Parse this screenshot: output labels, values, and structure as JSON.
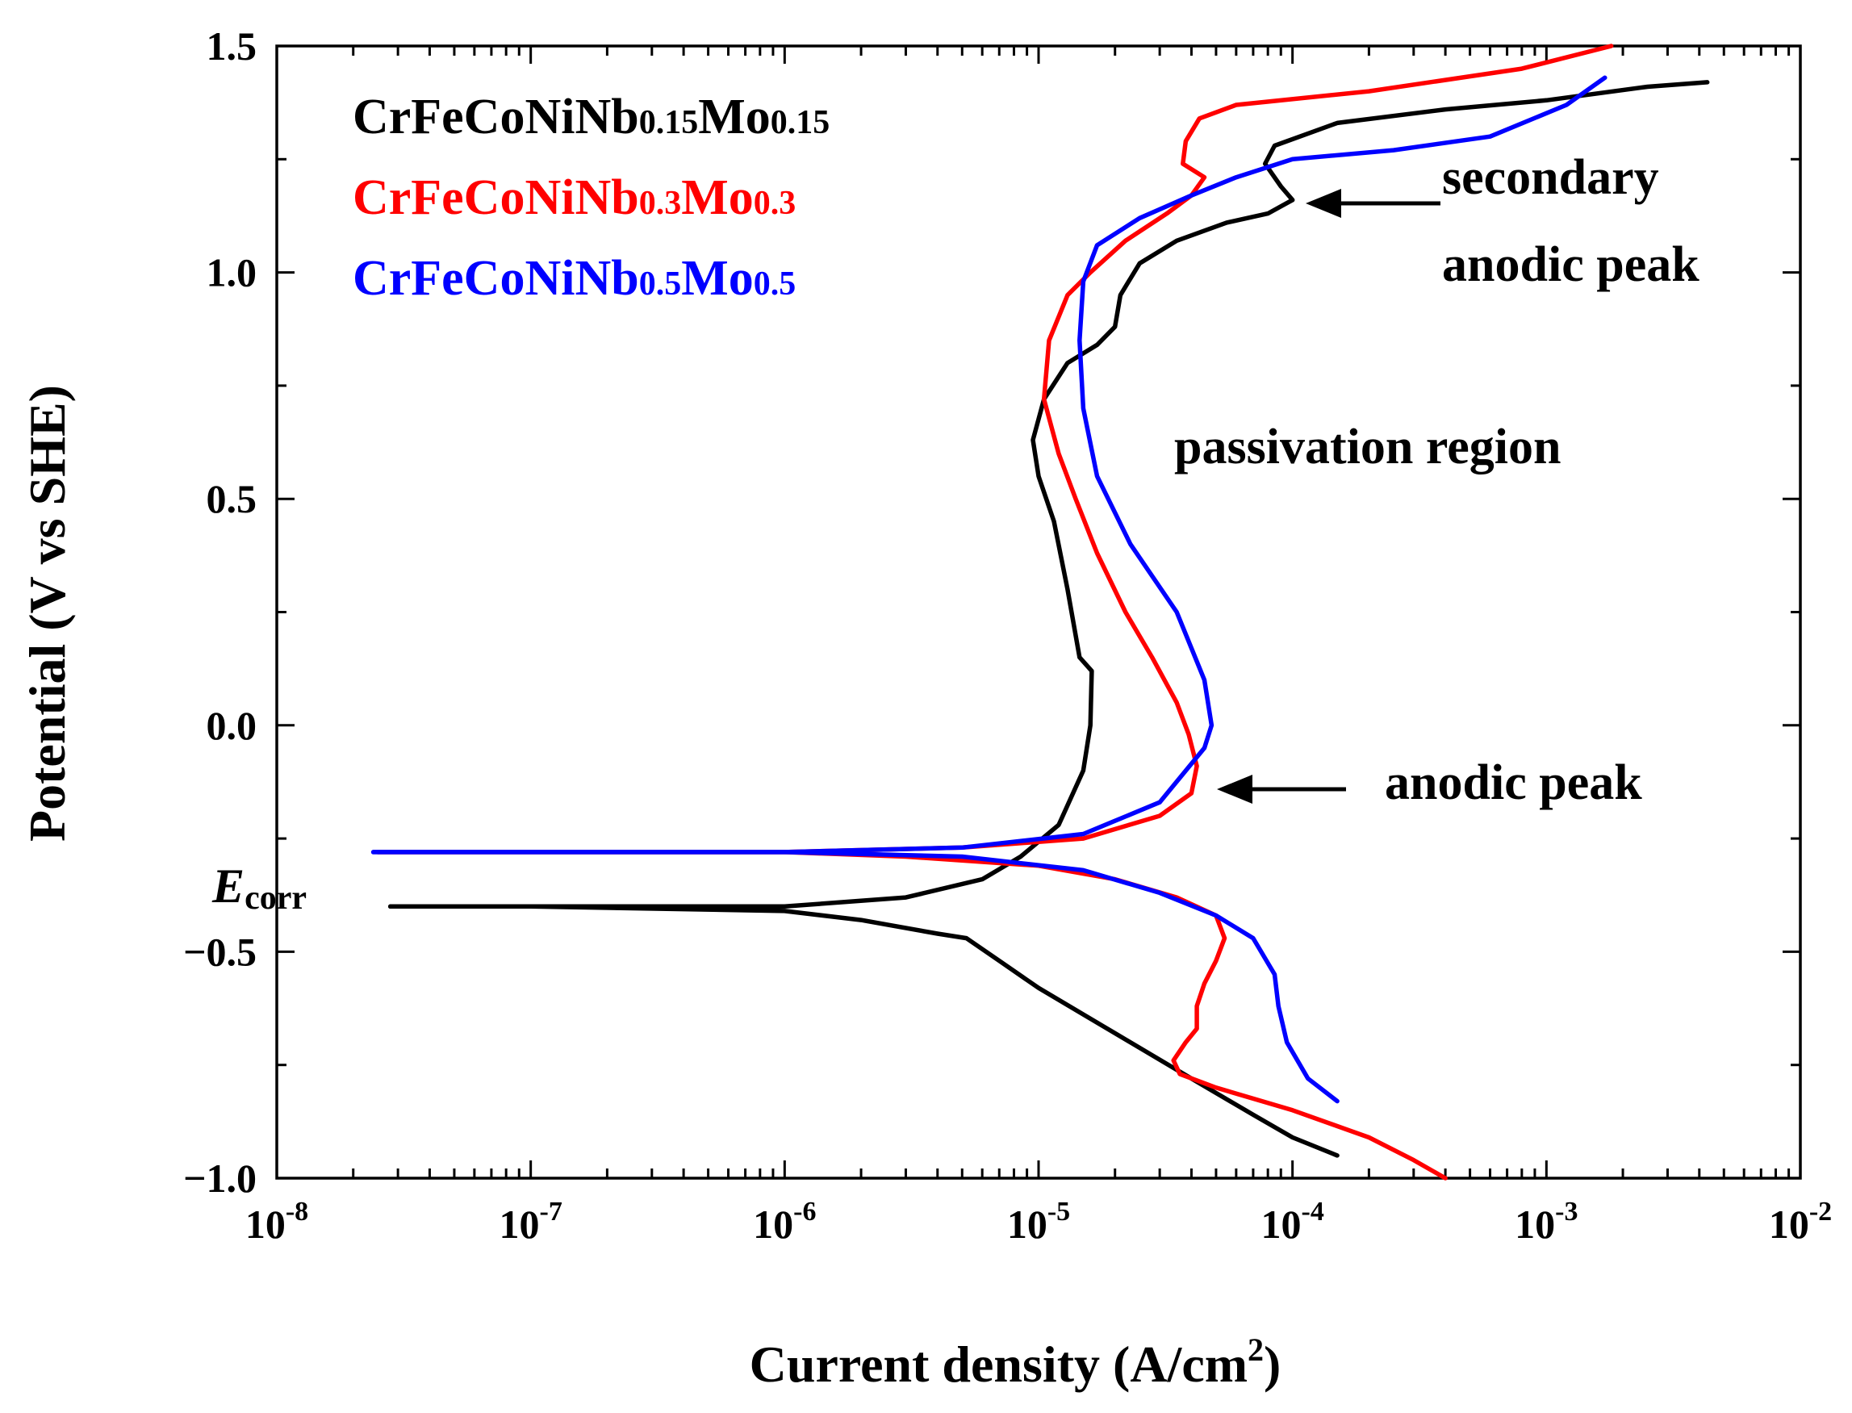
{
  "chart_data": {
    "type": "line",
    "title": "",
    "xlabel": "Current density (A/cm",
    "xlabel_sup": "2",
    "xlabel_close": ")",
    "ylabel": "Potential (V vs SHE)",
    "xscale": "log",
    "xlim": [
      1e-08,
      0.01
    ],
    "ylim": [
      -1.0,
      1.5
    ],
    "grid": false,
    "legend_position": "top-left",
    "x_ticks": [
      {
        "value": 1e-08,
        "base": "10",
        "exp": "-8"
      },
      {
        "value": 1e-07,
        "base": "10",
        "exp": "-7"
      },
      {
        "value": 1e-06,
        "base": "10",
        "exp": "-6"
      },
      {
        "value": 1e-05,
        "base": "10",
        "exp": "-5"
      },
      {
        "value": 0.0001,
        "base": "10",
        "exp": "-4"
      },
      {
        "value": 0.001,
        "base": "10",
        "exp": "-3"
      },
      {
        "value": 0.01,
        "base": "10",
        "exp": "-2"
      }
    ],
    "y_ticks": [
      {
        "value": -1.0,
        "label": "−1.0"
      },
      {
        "value": -0.5,
        "label": "−0.5"
      },
      {
        "value": 0.0,
        "label": "0.0"
      },
      {
        "value": 0.5,
        "label": "0.5"
      },
      {
        "value": 1.0,
        "label": "1.0"
      },
      {
        "value": 1.5,
        "label": "1.5"
      }
    ],
    "series": [
      {
        "name": "CrFeCoNiNb0.15Mo0.15",
        "legend_parts": [
          {
            "text": "CrFeCoNiNb",
            "sub": false
          },
          {
            "text": "0.15",
            "sub": true
          },
          {
            "text": "Mo",
            "sub": false
          },
          {
            "text": "0.15",
            "sub": true
          }
        ],
        "color": "#000000",
        "cathodic": [
          [
            2.8e-08,
            -0.4
          ],
          [
            1e-07,
            -0.4
          ],
          [
            1e-06,
            -0.41
          ],
          [
            2e-06,
            -0.43
          ],
          [
            4e-06,
            -0.46
          ],
          [
            5.2e-06,
            -0.47
          ],
          [
            7e-06,
            -0.52
          ],
          [
            1e-05,
            -0.58
          ],
          [
            2e-05,
            -0.68
          ],
          [
            4e-05,
            -0.78
          ],
          [
            7e-05,
            -0.86
          ],
          [
            0.0001,
            -0.91
          ],
          [
            0.00015,
            -0.95
          ]
        ],
        "anodic": [
          [
            2.8e-08,
            -0.4
          ],
          [
            1e-06,
            -0.4
          ],
          [
            3e-06,
            -0.38
          ],
          [
            6e-06,
            -0.34
          ],
          [
            8.5e-06,
            -0.29
          ],
          [
            1.2e-05,
            -0.22
          ],
          [
            1.5e-05,
            -0.1
          ],
          [
            1.6e-05,
            0.0
          ],
          [
            1.62e-05,
            0.12
          ],
          [
            1.45e-05,
            0.15
          ],
          [
            1.3e-05,
            0.3
          ],
          [
            1.15e-05,
            0.45
          ],
          [
            1e-05,
            0.55
          ],
          [
            9.5e-06,
            0.63
          ],
          [
            1.05e-05,
            0.72
          ],
          [
            1.3e-05,
            0.8
          ],
          [
            1.7e-05,
            0.84
          ],
          [
            2e-05,
            0.88
          ],
          [
            2.1e-05,
            0.95
          ],
          [
            2.5e-05,
            1.02
          ],
          [
            3.5e-05,
            1.07
          ],
          [
            5.5e-05,
            1.11
          ],
          [
            8e-05,
            1.13
          ],
          [
            0.0001,
            1.16
          ],
          [
            9e-05,
            1.19
          ],
          [
            7.8e-05,
            1.24
          ],
          [
            8.5e-05,
            1.28
          ],
          [
            0.00015,
            1.33
          ],
          [
            0.0004,
            1.36
          ],
          [
            0.001,
            1.38
          ],
          [
            0.0025,
            1.41
          ],
          [
            0.0043,
            1.42
          ]
        ]
      },
      {
        "name": "CrFeCoNiNb0.3Mo0.3",
        "legend_parts": [
          {
            "text": "CrFeCoNiNb",
            "sub": false
          },
          {
            "text": "0.3",
            "sub": true
          },
          {
            "text": "Mo",
            "sub": false
          },
          {
            "text": "0.3",
            "sub": true
          }
        ],
        "color": "#ff0000",
        "cathodic": [
          [
            2.5e-08,
            -0.28
          ],
          [
            1e-06,
            -0.28
          ],
          [
            3e-06,
            -0.29
          ],
          [
            1e-05,
            -0.31
          ],
          [
            2e-05,
            -0.34
          ],
          [
            3.5e-05,
            -0.38
          ],
          [
            5e-05,
            -0.42
          ],
          [
            5.4e-05,
            -0.47
          ],
          [
            5e-05,
            -0.52
          ],
          [
            4.5e-05,
            -0.57
          ],
          [
            4.2e-05,
            -0.62
          ],
          [
            4.2e-05,
            -0.67
          ],
          [
            3.8e-05,
            -0.7
          ],
          [
            3.4e-05,
            -0.74
          ],
          [
            3.6e-05,
            -0.77
          ],
          [
            5e-05,
            -0.8
          ],
          [
            0.0001,
            -0.85
          ],
          [
            0.0002,
            -0.91
          ],
          [
            0.0003,
            -0.96
          ],
          [
            0.0004,
            -1.0
          ]
        ],
        "anodic": [
          [
            2.5e-08,
            -0.28
          ],
          [
            1e-06,
            -0.28
          ],
          [
            5e-06,
            -0.27
          ],
          [
            1.5e-05,
            -0.25
          ],
          [
            3e-05,
            -0.2
          ],
          [
            4e-05,
            -0.15
          ],
          [
            4.2e-05,
            -0.09
          ],
          [
            3.9e-05,
            -0.02
          ],
          [
            3.5e-05,
            0.05
          ],
          [
            2.8e-05,
            0.15
          ],
          [
            2.2e-05,
            0.25
          ],
          [
            1.7e-05,
            0.38
          ],
          [
            1.4e-05,
            0.5
          ],
          [
            1.2e-05,
            0.6
          ],
          [
            1.05e-05,
            0.72
          ],
          [
            1.1e-05,
            0.85
          ],
          [
            1.3e-05,
            0.95
          ],
          [
            1.6e-05,
            1.0
          ],
          [
            2.2e-05,
            1.07
          ],
          [
            3.2e-05,
            1.13
          ],
          [
            4e-05,
            1.17
          ],
          [
            4.5e-05,
            1.21
          ],
          [
            3.7e-05,
            1.24
          ],
          [
            3.8e-05,
            1.29
          ],
          [
            4.3e-05,
            1.34
          ],
          [
            6e-05,
            1.37
          ],
          [
            0.0002,
            1.4
          ],
          [
            0.0008,
            1.45
          ],
          [
            0.0018,
            1.5
          ]
        ]
      },
      {
        "name": "CrFeCoNiNb0.5Mo0.5",
        "legend_parts": [
          {
            "text": "CrFeCoNiNb",
            "sub": false
          },
          {
            "text": "0.5",
            "sub": true
          },
          {
            "text": "Mo",
            "sub": false
          },
          {
            "text": "0.5",
            "sub": true
          }
        ],
        "color": "#0000ff",
        "cathodic": [
          [
            2.4e-08,
            -0.28
          ],
          [
            1e-06,
            -0.28
          ],
          [
            5e-06,
            -0.29
          ],
          [
            1.5e-05,
            -0.32
          ],
          [
            3e-05,
            -0.37
          ],
          [
            5e-05,
            -0.42
          ],
          [
            7e-05,
            -0.47
          ],
          [
            8.5e-05,
            -0.55
          ],
          [
            8.8e-05,
            -0.62
          ],
          [
            9.5e-05,
            -0.7
          ],
          [
            0.000115,
            -0.78
          ],
          [
            0.00015,
            -0.83
          ]
        ],
        "anodic": [
          [
            2.4e-08,
            -0.28
          ],
          [
            1e-06,
            -0.28
          ],
          [
            5e-06,
            -0.27
          ],
          [
            1.5e-05,
            -0.24
          ],
          [
            3e-05,
            -0.17
          ],
          [
            4.5e-05,
            -0.05
          ],
          [
            4.8e-05,
            0.0
          ],
          [
            4.5e-05,
            0.1
          ],
          [
            3.5e-05,
            0.25
          ],
          [
            2.3e-05,
            0.4
          ],
          [
            1.7e-05,
            0.55
          ],
          [
            1.5e-05,
            0.7
          ],
          [
            1.45e-05,
            0.85
          ],
          [
            1.5e-05,
            0.98
          ],
          [
            1.7e-05,
            1.06
          ],
          [
            2.5e-05,
            1.12
          ],
          [
            4e-05,
            1.17
          ],
          [
            6e-05,
            1.21
          ],
          [
            0.0001,
            1.25
          ],
          [
            0.00025,
            1.27
          ],
          [
            0.0006,
            1.3
          ],
          [
            0.0012,
            1.37
          ],
          [
            0.0017,
            1.43
          ]
        ]
      }
    ],
    "annotations": {
      "secondary_anodic_peak": [
        "secondary",
        "anodic peak"
      ],
      "passivation_region": "passivation region",
      "anodic_peak": "anodic peak",
      "ecorr_main": "E",
      "ecorr_sub": "corr"
    }
  }
}
